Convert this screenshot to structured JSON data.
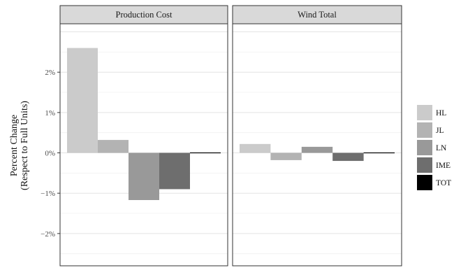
{
  "chart_data": {
    "type": "bar",
    "ylabel_line1": "Percent Change",
    "ylabel_line2": "(Respect to Full Units)",
    "ylim": [
      -2.8,
      3.2
    ],
    "yticks": [
      -2,
      -1,
      0,
      1,
      2
    ],
    "ytick_labels": [
      "−2%",
      "−1%",
      "0%",
      "1%",
      "2%"
    ],
    "grid": true,
    "legend_position": "right",
    "categories": [
      "HL",
      "JL",
      "LN",
      "IME",
      "TOT"
    ],
    "colors": [
      "#cbcbcb",
      "#b3b3b3",
      "#999999",
      "#6e6e6e",
      "#000000"
    ],
    "panels": [
      {
        "title": "Production Cost",
        "values": [
          2.6,
          0.32,
          -1.17,
          -0.9,
          0.01
        ]
      },
      {
        "title": "Wind Total",
        "values": [
          0.22,
          -0.18,
          0.15,
          -0.2,
          -0.02
        ]
      }
    ],
    "legend_labels": [
      "HL",
      "JL",
      "LN",
      "IME",
      "TOT"
    ]
  }
}
